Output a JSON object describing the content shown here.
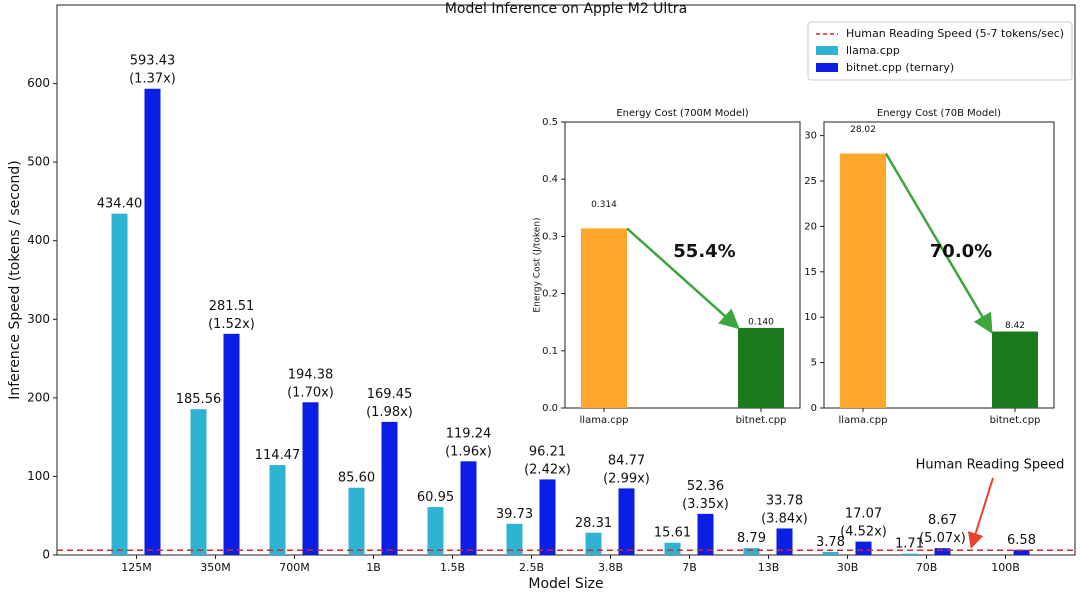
{
  "chart_data": [
    {
      "type": "bar",
      "title": "Model Inference on Apple M2 Ultra",
      "x_label": "Model Size",
      "y_label": "Inference Speed (tokens / second)",
      "categories": [
        "125M",
        "350M",
        "700M",
        "1B",
        "1.5B",
        "2.5B",
        "3.8B",
        "7B",
        "13B",
        "30B",
        "70B",
        "100B"
      ],
      "series": [
        {
          "name": "llama.cpp",
          "color": "#2fb3d2",
          "values": [
            434.4,
            185.56,
            114.47,
            85.6,
            60.95,
            39.73,
            28.31,
            15.61,
            8.79,
            3.78,
            1.71,
            null
          ],
          "value_labels": [
            "434.40",
            "185.56",
            "114.47",
            "85.60",
            "60.95",
            "39.73",
            "28.31",
            "15.61",
            "8.79",
            "3.78",
            "1.71",
            null
          ]
        },
        {
          "name": "bitnet.cpp (ternary)",
          "color": "#0a1ee6",
          "values": [
            593.43,
            281.51,
            194.38,
            169.45,
            119.24,
            96.21,
            84.77,
            52.36,
            33.78,
            17.07,
            8.67,
            6.58
          ],
          "value_labels": [
            "593.43\n(1.37x)",
            "281.51\n(1.52x)",
            "194.38\n(1.70x)",
            "169.45\n(1.98x)",
            "119.24\n(1.96x)",
            "96.21\n(2.42x)",
            "84.77\n(2.99x)",
            "52.36\n(3.35x)",
            "33.78\n(3.84x)",
            "17.07\n(4.52x)",
            "8.67\n(5.07x)",
            "6.58"
          ]
        }
      ],
      "reference_line": {
        "name": "Human Reading Speed (5-7 tokens/sec)",
        "value": 6,
        "color": "#d62728"
      },
      "annotation": "Human Reading Speed",
      "ylim": [
        0,
        700
      ],
      "yticks": [
        0,
        100,
        200,
        300,
        400,
        500,
        600
      ],
      "legend": "upper right"
    },
    {
      "type": "bar",
      "title": "Energy Cost (700M Model)",
      "y_label": "Energy Cost (J/token)",
      "categories": [
        "llama.cpp",
        "bitnet.cpp"
      ],
      "values": [
        0.314,
        0.14
      ],
      "value_labels": [
        "0.314",
        "0.140"
      ],
      "colors": [
        "#ffa62b",
        "#1e7a1e"
      ],
      "annotation": "55.4%",
      "annotation_color": "#3ca53c",
      "ylim": [
        0,
        0.5
      ],
      "yticks": [
        {
          "value": 0,
          "label": "0.0"
        },
        0.1,
        0.2,
        0.3,
        0.4,
        0.5
      ]
    },
    {
      "type": "bar",
      "title": "Energy Cost (70B Model)",
      "categories": [
        "llama.cpp",
        "bitnet.cpp"
      ],
      "values": [
        28.02,
        8.42
      ],
      "colors": [
        "#ffa62b",
        "#1e7a1e"
      ],
      "annotation": "70.0%",
      "annotation_color": "#3ca53c",
      "ylim": [
        0,
        31.5
      ],
      "yticks": [
        0,
        5,
        10,
        15,
        20,
        25,
        30
      ]
    }
  ]
}
